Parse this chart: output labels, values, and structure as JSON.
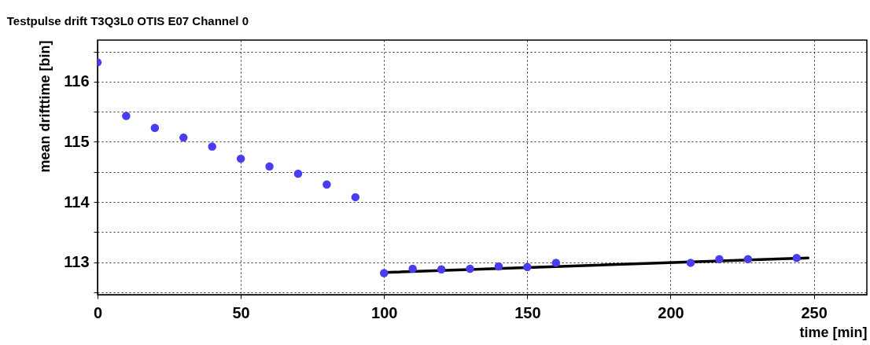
{
  "chart_data": {
    "type": "scatter",
    "title": "Testpulse drift T3Q3L0 OTIS E07 Channel 0",
    "xlabel": "time [min]",
    "ylabel": "mean drifttime [bin]",
    "xlim": [
      0,
      268.5
    ],
    "xticks": [
      0,
      50,
      100,
      150,
      200,
      250
    ],
    "ylim": [
      112.46,
      116.69
    ],
    "yticks": [
      {
        "value": 112.5,
        "label": null
      },
      113,
      {
        "value": 113.5,
        "label": null
      },
      114,
      {
        "value": 114.5,
        "label": null
      },
      115,
      {
        "value": 115.5,
        "label": null
      },
      116,
      {
        "value": 116.5,
        "label": null
      }
    ],
    "grid": true,
    "series": [
      {
        "marker": "circle",
        "color": "#4a3cf0",
        "x": [
          0,
          10,
          20,
          30,
          40,
          50,
          60,
          70,
          80,
          90,
          100,
          110,
          120,
          130,
          140,
          150,
          160,
          207,
          217,
          227,
          244
        ],
        "values": [
          116.32,
          115.43,
          115.23,
          115.07,
          114.92,
          114.72,
          114.59,
          114.47,
          114.29,
          114.08,
          112.82,
          112.89,
          112.88,
          112.89,
          112.93,
          112.92,
          112.99,
          112.99,
          113.05,
          113.05,
          113.07
        ]
      },
      {
        "type": "line",
        "color": "#000000",
        "x": [
          100,
          248
        ],
        "values": [
          112.83,
          113.07
        ]
      }
    ]
  }
}
